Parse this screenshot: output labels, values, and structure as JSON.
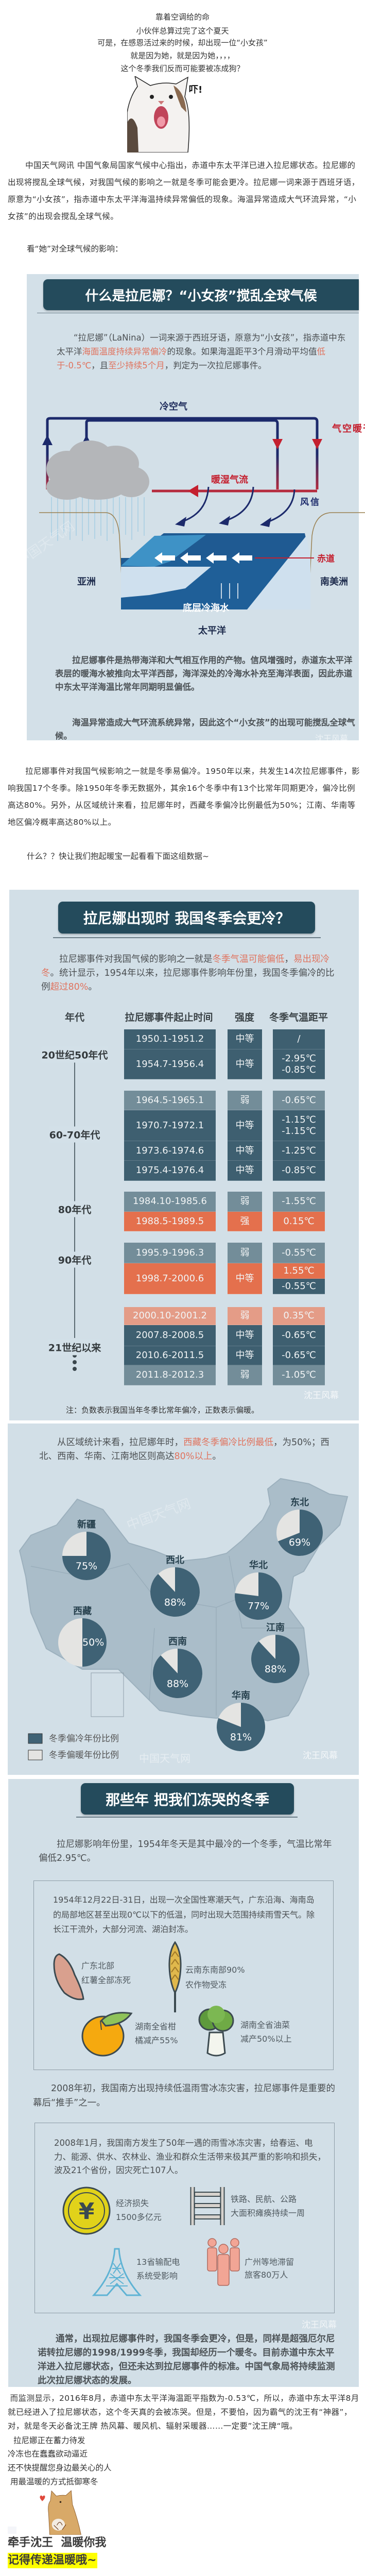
{
  "intro": {
    "lines": [
      "靠着空调给的命",
      "小伙伴总算过完了这个夏天",
      "可是，在感恩活过来的时候，却出现一位“小女孩”",
      "就是因为她，就是因为她，，，，",
      "这个冬季我们反而可能要被冻成狗？"
    ],
    "sticker_text": "吓!"
  },
  "para1": "中国天气网讯 中国气象局国家气候中心指出，赤道中东太平洋已进入拉尼娜状态。拉尼娜的出现将搅乱全球气候，对我国气候的影响之一就是冬季可能会更冷。拉尼娜一词来源于西班牙语，原意为“小女孩”，指赤道中东太平洋海温持续异常偏低的现象。海温异常造成大气环流异常，“小女孩”的出现会搅乱全球气候。",
  "look_line": "看“她”对全球气候的影响：",
  "info1": {
    "title": "什么是拉尼娜？“小女孩”搅乱全球气候",
    "text1": [
      {
        "t": "“拉尼娜”（LaNina）一词来源于西班牙语，原意为“小女孩”，指赤道中东太平洋",
        "hl": false
      },
      {
        "t": "海面温度持续异常偏冷",
        "hl": true
      },
      {
        "t": "的现象。如果海温距平3个月滑动平均值",
        "hl": false
      },
      {
        "t": "低于-0.5℃",
        "hl": true
      },
      {
        "t": "，且",
        "hl": false
      },
      {
        "t": "至少持续5个月",
        "hl": true
      },
      {
        "t": "，判定为一次拉尼娜事件。",
        "hl": false
      }
    ],
    "diagram": {
      "cold_air": "冷空气",
      "dry_warm_air": "干暖空气",
      "warm_moist_flow": "暖湿气流",
      "trade_wind": "信风",
      "equator": "赤道",
      "asia": "亚洲",
      "south_america": "南美洲",
      "cold_deep_water": "底层冷海水",
      "pacific": "太平洋"
    },
    "text2": "拉尼娜事件是热带海洋和大气相互作用的产物。信风增强时，赤道东太平洋表层的暖海水被推向太平洋西部，海洋深处的冷海水补充至海洋表面，因此赤道中东太平洋海温比常年同期明显偏低。",
    "text3": "海温异常造成大气环流系统异常，因此这个“小女孩”的出现可能搅乱全球气候。"
  },
  "para2": "拉尼娜事件对我国气候影响之一就是冬季易偏冷。1950年以来，共发生14次拉尼娜事件，影响我国17个冬季。除1950年冬季无数据外，其余16个冬季中有13个比常年同期更冷，偏冷比例高达80%。另外，从区域统计来看，拉尼娜年时，西藏冬季偏冷比例最低为50%；江南、华南等地区偏冷概率高达80%以上。",
  "data_intro": "什么？？快让我们抱起暖宝一起看看下面这组数据~",
  "info2": {
    "title": "拉尼娜出现时 我国冬季会更冷？",
    "text": [
      {
        "t": "拉尼娜事件对我国气候的影响之一就是",
        "hl": false
      },
      {
        "t": "冬季气温可能偏低",
        "hl": true
      },
      {
        "t": "，",
        "hl": false
      },
      {
        "t": "易出现冷冬",
        "hl": true
      },
      {
        "t": "。统计显示，1954年以来，拉尼娜事件影响年份里，我国冬季偏冷的比例",
        "hl": false
      },
      {
        "t": "超过80%",
        "hl": true
      },
      {
        "t": "。",
        "hl": false
      }
    ],
    "headers": [
      "年代",
      "拉尼娜事件起止时间",
      "强度",
      "冬季气温距平"
    ],
    "decades": [
      "20世纪50年代",
      "60-70年代",
      "80年代",
      "90年代",
      "21世纪以来"
    ],
    "colors": {
      "moderate": "#3e5f70",
      "weak": "#738d99",
      "strong": "#e4704d",
      "weak_warm": "#e49c87"
    },
    "rows": [
      {
        "period": "1950.1-1951.2",
        "strength": "中等",
        "anomaly": [
          "/"
        ],
        "tone": "moderate"
      },
      {
        "period": "1954.7-1956.4",
        "strength": "中等",
        "anomaly": [
          "-2.95℃",
          "-0.85℃"
        ],
        "tone": "moderate"
      },
      {
        "period": "1964.5-1965.1",
        "strength": "弱",
        "anomaly": [
          "-0.65℃"
        ],
        "tone": "weak"
      },
      {
        "period": "1970.7-1972.1",
        "strength": "中等",
        "anomaly": [
          "-1.15℃",
          "-1.15℃"
        ],
        "tone": "moderate"
      },
      {
        "period": "1973.6-1974.6",
        "strength": "中等",
        "anomaly": [
          "-1.25℃"
        ],
        "tone": "moderate"
      },
      {
        "period": "1975.4-1976.4",
        "strength": "中等",
        "anomaly": [
          "-0.85℃"
        ],
        "tone": "moderate"
      },
      {
        "period": "1984.10-1985.6",
        "strength": "弱",
        "anomaly": [
          "-1.55℃"
        ],
        "tone": "weak"
      },
      {
        "period": "1988.5-1989.5",
        "strength": "强",
        "anomaly": [
          "0.15℃"
        ],
        "tone": "strong"
      },
      {
        "period": "1995.9-1996.3",
        "strength": "弱",
        "anomaly": [
          "-0.55℃"
        ],
        "tone": "weak"
      },
      {
        "period": "1998.7-2000.6",
        "strength": "中等",
        "anomaly": [
          "1.55℃",
          "-0.55℃"
        ],
        "tone": "strong",
        "anomaly_tones": [
          "strong",
          "moderate"
        ]
      },
      {
        "period": "2000.10-2001.2",
        "strength": "弱",
        "anomaly": [
          "0.35℃"
        ],
        "tone": "weak_warm"
      },
      {
        "period": "2007.8-2008.5",
        "strength": "中等",
        "anomaly": [
          "-0.65℃"
        ],
        "tone": "moderate"
      },
      {
        "period": "2010.6-2011.5",
        "strength": "中等",
        "anomaly": [
          "-0.65℃"
        ],
        "tone": "moderate"
      },
      {
        "period": "2011.8-2012.3",
        "strength": "弱",
        "anomaly": [
          "-1.05℃"
        ],
        "tone": "weak"
      }
    ],
    "note": "注：负数表示我国当年冬季比常年偏冷，正数表示偏暖。",
    "watermark": "沈王风幕"
  },
  "info3": {
    "text": [
      {
        "t": "从区域统计来看，拉尼娜年时，",
        "hl": false
      },
      {
        "t": "西藏冬季偏冷比例最低",
        "hl": true
      },
      {
        "t": "，为50%；西北、西南、华南、江南地区则高达",
        "hl": false
      },
      {
        "t": "80%以上",
        "hl": true
      },
      {
        "t": "。",
        "hl": false
      }
    ],
    "chart_data": {
      "type": "pie",
      "series": [
        "冬季偏冷年份比例",
        "冬季偏暖年份比例"
      ],
      "colors": {
        "cold": "#3f6275",
        "warm": "#e4e4e2"
      },
      "regions": [
        {
          "name": "新疆",
          "cold_pct": 75
        },
        {
          "name": "东北",
          "cold_pct": 69
        },
        {
          "name": "西北",
          "cold_pct": 88
        },
        {
          "name": "华北",
          "cold_pct": 77
        },
        {
          "name": "西藏",
          "cold_pct": 50
        },
        {
          "name": "西南",
          "cold_pct": 88
        },
        {
          "name": "江南",
          "cold_pct": 88
        },
        {
          "name": "华南",
          "cold_pct": 81
        }
      ],
      "legend": [
        "冬季偏冷年份比例",
        "冬季偏暖年份比例"
      ],
      "legend_position": "bottom-left"
    },
    "watermark": "沈王风幕",
    "watermark_site": "中国天气网"
  },
  "info4": {
    "title": "那些年 把我们冻哭的冬季",
    "text1": "拉尼娜影响年份里，1954年冬天是其中最冷的一个冬季，气温比常年偏低2.95℃。",
    "box1_text": "1954年12月22日-31日，出现一次全国性寒潮天气，广东沿海、海南岛的局部地区甚至出现0℃以下的低温，同时出现大范围持续雨雪天气。除长江干流外，大部分河流、湖泊封冻。",
    "crops": [
      {
        "icon": "sweet-potato",
        "lines": [
          "广东北部",
          "红薯全部冻死"
        ]
      },
      {
        "icon": "wheat",
        "lines": [
          "云南东南部90%",
          "农作物受冻"
        ]
      },
      {
        "icon": "orange",
        "lines": [
          "湖南全省柑",
          "橘减产55%"
        ]
      },
      {
        "icon": "cabbage",
        "lines": [
          "湖南全省油菜",
          "减产50%以上"
        ]
      }
    ],
    "text2": "2008年初，我国南方出现持续低温雨雪冰冻灾害，拉尼娜事件是重要的幕后“推手”之一。",
    "box2_text": "2008年1月，我国南方发生了50年一遇的雨雪冰冻灾害，给春运、电力、能源、供水、农林业、渔业和群众生活带来极其严重的影响和损失，波及21个省份，因灾死亡107人。",
    "impacts": [
      {
        "icon": "yuan-coin",
        "lines": [
          "经济损失",
          "1500多亿元"
        ]
      },
      {
        "icon": "railway-track",
        "lines": [
          "铁路、民航、公路",
          "大面积瘫痪持续一周"
        ]
      },
      {
        "icon": "power-tower",
        "lines": [
          "13省输配电",
          "系统受影响"
        ]
      },
      {
        "icon": "people",
        "lines": [
          "广州等地滞留",
          "旅客80万人"
        ]
      }
    ],
    "text3": "通常，出现拉尼娜事件时，我国冬季会更冷，但是，同样是超强厄尔尼诺转拉尼娜的1998/1999冬季，我国却经历一个暖冬。目前赤道中东太平洋进入拉尼娜状态，但还未达到拉尼娜事件的标准。中国气象局将持续监测此次拉尼娜状态的发展。",
    "watermark": "沈王风幕"
  },
  "para3": "而监测显示，2016年8月，赤道中东太平洋海温距平指数为-0.53℃，所以，赤道中东太平洋8月就已经进入了拉尼娜状态，这个冬天真的会被冻哭。但是，不要怕，因为霸气的沈王有“神器”，对，就是冬天必备沈王牌 热风幕、暖风机、辐射采暖器……一定要”沈王牌“哦。",
  "closing": {
    "lines": [
      "拉尼娜正在蓄力待发",
      "冷冻也在蠢蠢欲动逼近",
      "还不快提醒您身边最关心的人",
      "用最温暖的方式抵御寒冬"
    ],
    "slogan": "牵手沈王  温暖你我",
    "highlight": "记得传递温暖哦~",
    "highlight_color": "#ffff00"
  }
}
